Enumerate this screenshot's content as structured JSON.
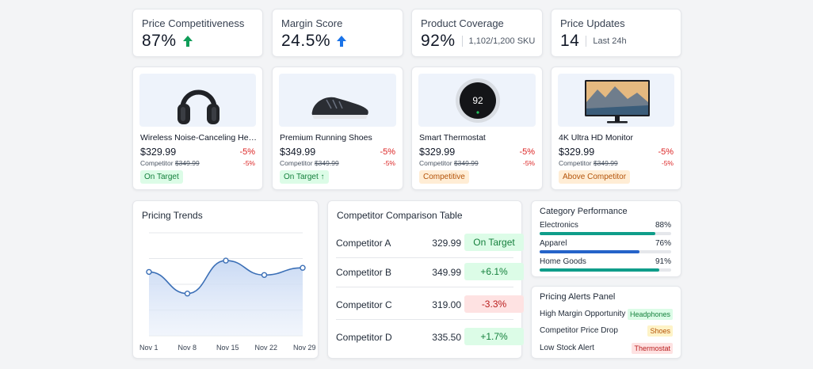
{
  "kpis": [
    {
      "title": "Price Competitiveness",
      "value": "87%",
      "trend": "up",
      "trend_color": "#0f9d58"
    },
    {
      "title": "Margin Score",
      "value": "24.5%",
      "trend": "up",
      "trend_color": "#1a73e8"
    },
    {
      "title": "Product Coverage",
      "value": "92%",
      "sub": "1,102/1,200 SKU"
    },
    {
      "title": "Price Updates",
      "value": "14",
      "sub": "Last 24h"
    }
  ],
  "products": [
    {
      "name": "Wireless Noise-Canceling Hea...",
      "price": "$329.99",
      "pct": "-5%",
      "comp_label": "Competitor",
      "comp_price": "$349.99",
      "comp_pct": "-5%",
      "badge": "On Target",
      "badge_style": "green",
      "icon": "headphones-icon"
    },
    {
      "name": "Premium Running Shoes",
      "price": "$349.99",
      "pct": "-5%",
      "comp_label": "Competitor",
      "comp_price": "$349.99",
      "comp_pct": "-5%",
      "badge": "On Target ↑",
      "badge_style": "green",
      "icon": "running-shoe-icon"
    },
    {
      "name": "Smart Thermostat",
      "price": "$329.99",
      "pct": "-5%",
      "comp_label": "Competitor",
      "comp_price": "$349.99",
      "comp_pct": "-5%",
      "badge": "Competitive",
      "badge_style": "orange",
      "icon": "thermostat-icon",
      "display_value": "92"
    },
    {
      "name": "4K Ultra HD Monitor",
      "price": "$329.99",
      "pct": "-5%",
      "comp_label": "Competitor",
      "comp_price": "$349.99",
      "comp_pct": "-5%",
      "badge": "Above Competitor",
      "badge_style": "orange",
      "icon": "monitor-icon"
    }
  ],
  "pricing_trends": {
    "title": "Pricing Trends",
    "chart_data": {
      "type": "area",
      "categories": [
        "Nov 1",
        "Nov 8",
        "Nov 15",
        "Nov 22",
        "Nov 29"
      ],
      "values": [
        62,
        41,
        73,
        59,
        66
      ],
      "ylim": [
        0,
        100
      ],
      "grid": true,
      "color": "#3b6fb6"
    }
  },
  "comparison_table": {
    "title": "Competitor Comparison Table",
    "rows": [
      {
        "name": "Competitor A",
        "value": "329.99",
        "badge": "On Target",
        "style": "green"
      },
      {
        "name": "Competitor B",
        "value": "349.99",
        "badge": "+6.1%",
        "style": "green"
      },
      {
        "name": "Competitor C",
        "value": "319.00",
        "badge": "-3.3%",
        "style": "red"
      },
      {
        "name": "Competitor D",
        "value": "335.50",
        "badge": "+1.7%",
        "style": "green"
      }
    ]
  },
  "category_performance": {
    "title": "Category Performance",
    "items": [
      {
        "label": "Electronics",
        "pct": "88%",
        "fill": 0.88,
        "color": "#0f9d8a"
      },
      {
        "label": "Apparel",
        "pct": "76%",
        "fill": 0.76,
        "color": "#2563c9"
      },
      {
        "label": "Home Goods",
        "pct": "91%",
        "fill": 0.91,
        "color": "#0f9d8a"
      }
    ]
  },
  "alerts": {
    "title": "Pricing Alerts Panel",
    "items": [
      {
        "label": "High Margin Opportunity",
        "tag": "Headphones",
        "style": "green"
      },
      {
        "label": "Competitor Price Drop",
        "tag": "Shoes",
        "style": "orange"
      },
      {
        "label": "Low Stock Alert",
        "tag": "Thermostat",
        "style": "red"
      }
    ]
  }
}
